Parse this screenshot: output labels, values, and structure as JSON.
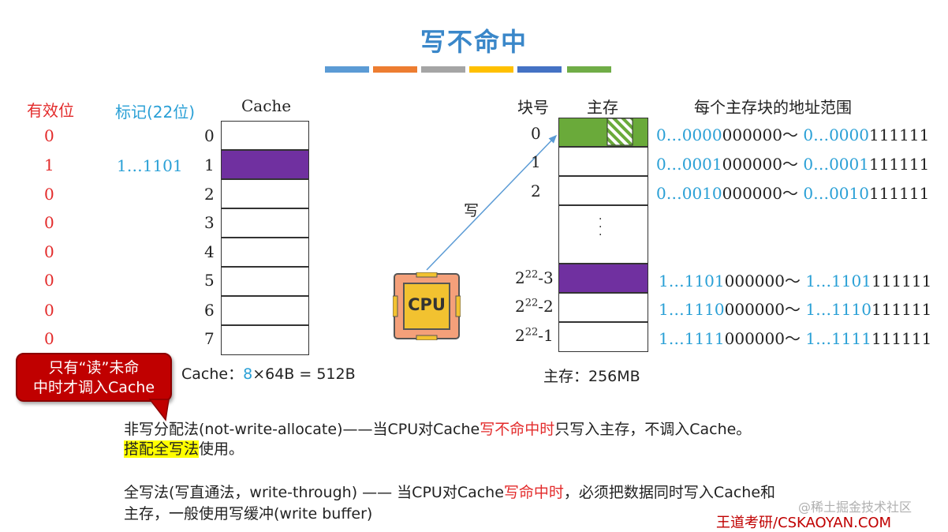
{
  "title": "写不命中",
  "accent_bars": [
    "#5b9bd5",
    "#ed7d31",
    "#a5a5a5",
    "#ffc000",
    "#4472c4",
    "#70ad47"
  ],
  "left": {
    "valid_header": "有效位",
    "tag_header": "标记(22位)",
    "cache_header": "Cache",
    "valid_bits": [
      "0",
      "1",
      "0",
      "0",
      "0",
      "0",
      "0",
      "0"
    ],
    "tags": [
      "",
      "1…1101",
      "",
      "",
      "",
      "",
      "",
      ""
    ],
    "line_numbers": [
      "0",
      "1",
      "2",
      "3",
      "4",
      "5",
      "6",
      "7"
    ],
    "cache_size_prefix": "Cache：",
    "cache_size_lines": "8",
    "cache_size_suffix": "×64B = 512B"
  },
  "callout": {
    "line1": "只有“读”未命",
    "line2": "中时才调入Cache"
  },
  "cpu_label": "CPU",
  "write_label": "写",
  "right": {
    "block_header": "块号",
    "mem_header": "主存",
    "range_header": "每个主存块的地址范围",
    "blocks": [
      {
        "base": "0",
        "exp": "",
        "tail": ""
      },
      {
        "base": "1",
        "exp": "",
        "tail": ""
      },
      {
        "base": "2",
        "exp": "",
        "tail": ""
      },
      {
        "base": "2",
        "exp": "22",
        "tail": "-3"
      },
      {
        "base": "2",
        "exp": "22",
        "tail": "-2"
      },
      {
        "base": "2",
        "exp": "22",
        "tail": "-1"
      }
    ],
    "dots": "·\n·\n·",
    "ranges": [
      {
        "s_hi": "0…0000",
        "s_lo": "000000",
        "sep": "～ ",
        "e_hi": "0…0000",
        "e_lo": "111111"
      },
      {
        "s_hi": "0…0001",
        "s_lo": "000000",
        "sep": "～ ",
        "e_hi": "0…0001",
        "e_lo": "111111"
      },
      {
        "s_hi": "0…0010",
        "s_lo": "000000",
        "sep": "～ ",
        "e_hi": "0…0010",
        "e_lo": "111111"
      },
      {
        "s_hi": "1…1101",
        "s_lo": "000000",
        "sep": "～ ",
        "e_hi": "1…1101",
        "e_lo": "111111"
      },
      {
        "s_hi": "1…1110",
        "s_lo": "000000",
        "sep": "～ ",
        "e_hi": "1…1110",
        "e_lo": "111111"
      },
      {
        "s_hi": "1…1111",
        "s_lo": "000000",
        "sep": "～ ",
        "e_hi": "1…1111",
        "e_lo": "111111"
      }
    ],
    "mem_size": "主存：256MB"
  },
  "text": {
    "p1_a": "非写分配法(not-write-allocate)——当CPU对Cache",
    "p1_red": "写不命中时",
    "p1_b": "只写入主存，不调入Cache。",
    "p1_hl": "搭配全写法",
    "p1_c": "使用。",
    "p2_a": "全写法(写直通法，write-through) —— 当CPU对Cache",
    "p2_red": "写命中时",
    "p2_b": "，必须把数据同时写入Cache和",
    "p2_c": "主存，一般使用写缓冲(write buffer)"
  },
  "watermark": "@稀土掘金技术社区",
  "brand": "王道考研/CSKAOYAN.COM",
  "colors": {
    "purple": "#7030a0",
    "green": "#6aaa3a",
    "red": "#e32b2b",
    "blue": "#2aa0d6",
    "callout": "#c00000",
    "cpu_fill": "#f4a07a",
    "cpu_chip": "#f2c230"
  }
}
